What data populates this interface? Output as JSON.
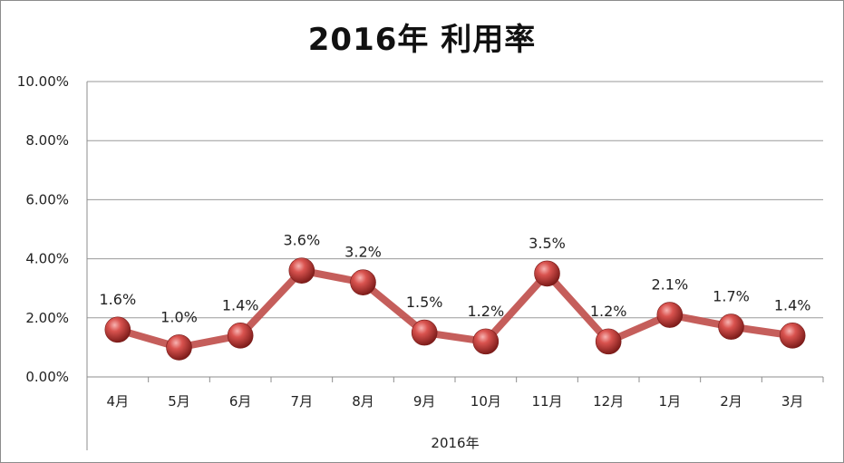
{
  "chart_data": {
    "type": "line",
    "title": "2016年 利用率",
    "xlabel": "2016年",
    "ylabel": "",
    "categories": [
      "4月",
      "5月",
      "6月",
      "7月",
      "8月",
      "9月",
      "10月",
      "11月",
      "12月",
      "1月",
      "2月",
      "3月"
    ],
    "series": [
      {
        "values": [
          0.016,
          0.01,
          0.014,
          0.036,
          0.032,
          0.015,
          0.012,
          0.035,
          0.012,
          0.021,
          0.017,
          0.014
        ],
        "data_labels": [
          "1.6%",
          "1.0%",
          "1.4%",
          "3.6%",
          "3.2%",
          "1.5%",
          "1.2%",
          "3.5%",
          "1.2%",
          "2.1%",
          "1.7%",
          "1.4%"
        ],
        "color": "#c0504d"
      }
    ],
    "ylim": [
      0,
      0.1
    ],
    "y_ticks": [
      "0.00%",
      "2.00%",
      "4.00%",
      "6.00%",
      "8.00%",
      "10.00%"
    ],
    "grid": true,
    "legend": "none"
  }
}
